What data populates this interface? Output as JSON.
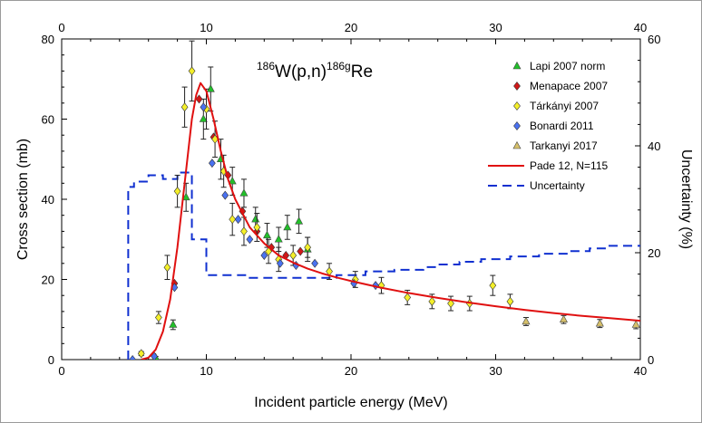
{
  "chart_data": {
    "type": "scatter",
    "title_parts": {
      "target_mass": "186",
      "target_reaction": "W(p,n)",
      "product_mass": "186g",
      "product": "Re"
    },
    "xlabel": "Incident particle energy (MeV)",
    "ylabel": "Cross section (mb)",
    "y2label": "Uncertainty (%)",
    "xlim": [
      0,
      40
    ],
    "ylim": [
      0,
      80
    ],
    "y2lim": [
      0,
      60
    ],
    "x_ticks": [
      0,
      10,
      20,
      30,
      40
    ],
    "y_ticks": [
      0,
      20,
      40,
      60,
      80
    ],
    "y2_ticks": [
      0,
      20,
      40,
      60
    ],
    "legend_position": "top-right",
    "colors": {
      "lapi": "#22c02a",
      "menapace": "#d01818",
      "tarkanyi2007": "#f4ef2a",
      "bonardi": "#4a72f0",
      "tarkanyi2017": "#d6c06a",
      "fit": "#e01010",
      "uncertainty": "#1030d0"
    },
    "series": [
      {
        "name": "Lapi  2007 norm",
        "marker": "triangle",
        "color_key": "lapi",
        "points": [
          {
            "x": 6.5,
            "y": 0.5,
            "e": 0.3
          },
          {
            "x": 7.7,
            "y": 8.7,
            "e": 1.2
          },
          {
            "x": 8.6,
            "y": 40.5,
            "e": 3.5
          },
          {
            "x": 9.8,
            "y": 60.0,
            "e": 5.0
          },
          {
            "x": 10.3,
            "y": 67.5,
            "e": 5.5
          },
          {
            "x": 11.0,
            "y": 50.0,
            "e": 5.0
          },
          {
            "x": 11.8,
            "y": 44.5,
            "e": 3.5
          },
          {
            "x": 12.6,
            "y": 41.5,
            "e": 3.5
          },
          {
            "x": 13.4,
            "y": 35.0,
            "e": 3.0
          },
          {
            "x": 14.2,
            "y": 31.0,
            "e": 3.0
          },
          {
            "x": 15.0,
            "y": 30.0,
            "e": 3.0
          },
          {
            "x": 15.6,
            "y": 33.0,
            "e": 3.0
          },
          {
            "x": 16.4,
            "y": 34.5,
            "e": 3.0
          },
          {
            "x": 17.0,
            "y": 27.5,
            "e": 3.0
          }
        ]
      },
      {
        "name": "Menapace  2007",
        "marker": "diamond",
        "color_key": "menapace",
        "points": [
          {
            "x": 7.8,
            "y": 19.0,
            "e": 0
          },
          {
            "x": 9.5,
            "y": 65.0,
            "e": 0
          },
          {
            "x": 10.5,
            "y": 55.5,
            "e": 0
          },
          {
            "x": 11.5,
            "y": 46.0,
            "e": 0
          },
          {
            "x": 12.5,
            "y": 37.0,
            "e": 0
          },
          {
            "x": 13.5,
            "y": 32.0,
            "e": 0
          },
          {
            "x": 14.5,
            "y": 28.0,
            "e": 0
          },
          {
            "x": 15.5,
            "y": 26.0,
            "e": 0
          },
          {
            "x": 16.5,
            "y": 27.0,
            "e": 0
          }
        ]
      },
      {
        "name": "Tárkányi  2007",
        "marker": "diamond",
        "color_key": "tarkanyi2007",
        "points": [
          {
            "x": 5.5,
            "y": 1.5,
            "e": 0.5
          },
          {
            "x": 6.7,
            "y": 10.5,
            "e": 1.5
          },
          {
            "x": 7.3,
            "y": 23.0,
            "e": 3.0
          },
          {
            "x": 8.0,
            "y": 42.0,
            "e": 4.0
          },
          {
            "x": 8.5,
            "y": 63.0,
            "e": 5.0
          },
          {
            "x": 9.0,
            "y": 72.0,
            "e": 7.5
          },
          {
            "x": 10.0,
            "y": 62.5,
            "e": 5.0
          },
          {
            "x": 10.6,
            "y": 55.0,
            "e": 4.5
          },
          {
            "x": 11.2,
            "y": 47.0,
            "e": 4.0
          },
          {
            "x": 11.8,
            "y": 35.0,
            "e": 4.0
          },
          {
            "x": 12.6,
            "y": 32.0,
            "e": 3.5
          },
          {
            "x": 13.5,
            "y": 33.0,
            "e": 3.5
          },
          {
            "x": 14.3,
            "y": 27.0,
            "e": 3.0
          },
          {
            "x": 15.0,
            "y": 25.0,
            "e": 3.0
          },
          {
            "x": 16.0,
            "y": 26.0,
            "e": 2.5
          },
          {
            "x": 17.0,
            "y": 28.0,
            "e": 2.5
          },
          {
            "x": 18.5,
            "y": 22.0,
            "e": 2.0
          },
          {
            "x": 20.3,
            "y": 20.0,
            "e": 2.0
          },
          {
            "x": 22.1,
            "y": 18.5,
            "e": 2.0
          },
          {
            "x": 23.9,
            "y": 15.5,
            "e": 1.8
          },
          {
            "x": 25.6,
            "y": 14.5,
            "e": 1.8
          },
          {
            "x": 26.9,
            "y": 14.0,
            "e": 1.8
          },
          {
            "x": 28.2,
            "y": 14.0,
            "e": 1.8
          },
          {
            "x": 29.8,
            "y": 18.5,
            "e": 2.5
          },
          {
            "x": 31.0,
            "y": 14.5,
            "e": 1.8
          }
        ]
      },
      {
        "name": "Bonardi 2011",
        "marker": "diamond",
        "color_key": "bonardi",
        "points": [
          {
            "x": 4.9,
            "y": 0.0,
            "e": 0
          },
          {
            "x": 6.4,
            "y": 0.8,
            "e": 0
          },
          {
            "x": 7.8,
            "y": 18.0,
            "e": 0
          },
          {
            "x": 9.8,
            "y": 63.0,
            "e": 0
          },
          {
            "x": 10.4,
            "y": 49.0,
            "e": 0
          },
          {
            "x": 11.3,
            "y": 41.0,
            "e": 0
          },
          {
            "x": 12.2,
            "y": 35.0,
            "e": 0
          },
          {
            "x": 13.0,
            "y": 30.0,
            "e": 0
          },
          {
            "x": 14.0,
            "y": 26.0,
            "e": 0
          },
          {
            "x": 15.1,
            "y": 24.0,
            "e": 0
          },
          {
            "x": 16.2,
            "y": 23.5,
            "e": 0
          },
          {
            "x": 17.5,
            "y": 24.0,
            "e": 0
          },
          {
            "x": 20.2,
            "y": 19.0,
            "e": 0
          },
          {
            "x": 21.7,
            "y": 18.5,
            "e": 0
          }
        ]
      },
      {
        "name": "Tarkanyi 2017",
        "marker": "triangle",
        "color_key": "tarkanyi2017",
        "points": [
          {
            "x": 32.1,
            "y": 9.5,
            "e": 1.0
          },
          {
            "x": 34.7,
            "y": 10.0,
            "e": 1.0
          },
          {
            "x": 37.2,
            "y": 9.0,
            "e": 1.0
          },
          {
            "x": 39.7,
            "y": 8.7,
            "e": 1.0
          }
        ]
      }
    ],
    "fit": {
      "name": "Pade 12, N=115",
      "x": [
        5.5,
        6.0,
        6.5,
        7.0,
        7.5,
        8.0,
        8.5,
        9.0,
        9.3,
        9.6,
        10.0,
        10.5,
        11.0,
        11.5,
        12.0,
        13.0,
        14.0,
        15.0,
        16.0,
        17.0,
        18.0,
        19.0,
        20.0,
        22.0,
        24.0,
        26.0,
        28.0,
        30.0,
        32.0,
        34.0,
        36.0,
        38.0,
        40.0
      ],
      "y": [
        0,
        0.5,
        2.5,
        7.0,
        15.0,
        28.0,
        44.0,
        60.0,
        66.0,
        69.0,
        67.0,
        60.0,
        52.0,
        45.0,
        40.0,
        33.0,
        29.0,
        26.0,
        24.2,
        22.7,
        21.5,
        20.5,
        19.6,
        18.0,
        16.6,
        15.4,
        14.3,
        13.3,
        12.4,
        11.6,
        10.9,
        10.3,
        9.7
      ]
    },
    "uncertainty": {
      "name": "Uncertainty",
      "axis": "right",
      "x": [
        4.6,
        4.6,
        5.0,
        5.0,
        6.0,
        6.0,
        7.0,
        7.0,
        8.0,
        8.0,
        9.0,
        9.0,
        10.0,
        10.0,
        13.0,
        13.0,
        19.0,
        19.0,
        21.0,
        21.0,
        23.0,
        23.0,
        25.0,
        25.0,
        26.0,
        26.0,
        27.5,
        27.5,
        29.0,
        29.0,
        31.0,
        31.0,
        33.0,
        33.0,
        35.0,
        35.0,
        36.5,
        36.5,
        37.8,
        37.8,
        40.0
      ],
      "y": [
        0,
        32.3,
        32.3,
        33.3,
        33.3,
        34.5,
        34.5,
        33.8,
        33.8,
        35.0,
        35.0,
        22.5,
        22.5,
        15.8,
        15.8,
        15.3,
        15.3,
        15.8,
        15.8,
        16.5,
        16.5,
        16.8,
        16.8,
        17.3,
        17.3,
        17.8,
        17.8,
        18.3,
        18.3,
        18.8,
        18.8,
        19.3,
        19.3,
        19.8,
        19.8,
        20.3,
        20.3,
        20.8,
        20.8,
        21.3,
        21.3
      ]
    }
  }
}
